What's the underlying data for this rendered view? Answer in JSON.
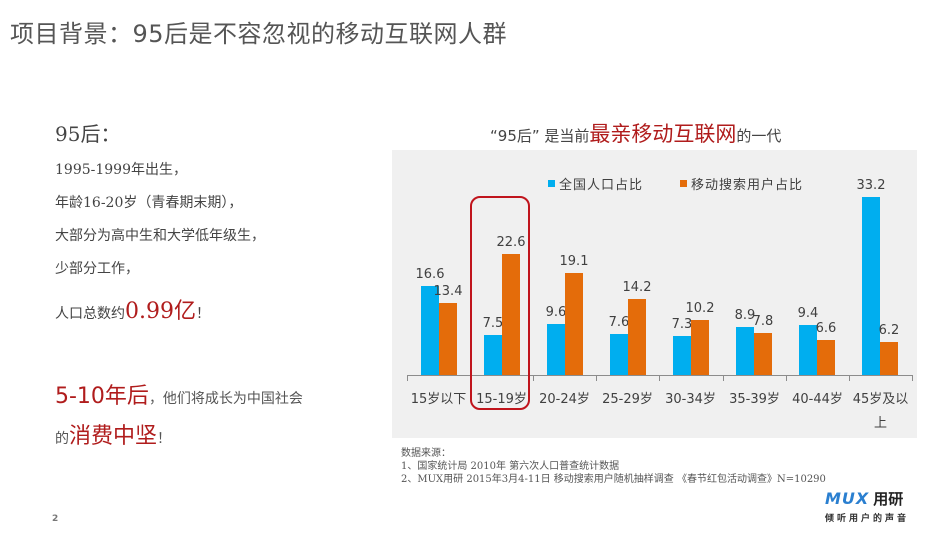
{
  "slide": {
    "title": "项目背景：95后是不容忽视的移动互联网人群",
    "page_number": "2"
  },
  "left_panel": {
    "heading": "95后：",
    "lines": [
      "1995-1999年出生，",
      "年龄16-20岁（青春期末期），",
      "大部分为高中生和大学低年级生，",
      "少部分工作，"
    ],
    "population_prefix": "人口总数约",
    "population_value": "0.99亿",
    "population_suffix": "！",
    "future_highlight": "5-10年后",
    "future_text": "，他们将成长为中国社会",
    "future_prefix2": "的",
    "future_highlight2": "消费中坚",
    "future_suffix2": "！"
  },
  "chart_header": {
    "prefix": "“95后” 是当前",
    "highlight": "最亲移动互联网",
    "suffix": "的一代"
  },
  "colors": {
    "population": "#00aeef",
    "mobile_search": "#e46c0a",
    "highlight_red": "#c0141c",
    "panel_bg": "#f0f0f0"
  },
  "chart_data": {
    "type": "bar",
    "title": "“95后” 是当前最亲移动互联网的一代",
    "xlabel": "",
    "ylabel": "",
    "categories": [
      "15岁以下",
      "15-19岁",
      "20-24岁",
      "25-29岁",
      "30-34岁",
      "35-39岁",
      "40-44岁",
      "45岁及以上"
    ],
    "series": [
      {
        "name": "全国人口占比",
        "color": "#00aeef",
        "values": [
          16.6,
          7.5,
          9.6,
          7.6,
          7.3,
          8.9,
          9.4,
          33.2
        ]
      },
      {
        "name": "移动搜索用户占比",
        "color": "#e46c0a",
        "values": [
          13.4,
          22.6,
          19.1,
          14.2,
          10.2,
          7.8,
          6.6,
          6.2
        ]
      }
    ],
    "legend_position": "top",
    "grid": false,
    "data_labels": true,
    "highlighted_category": "15-19岁",
    "ylim": [
      0,
      35
    ]
  },
  "legend": {
    "items": [
      {
        "label": "全国人口占比"
      },
      {
        "label": "移动搜索用户占比"
      }
    ]
  },
  "source": {
    "heading": "数据来源：",
    "items": [
      "1、国家统计局 2010年 第六次人口普查统计数据",
      "2、MUX用研 2015年3月4-11日 移动搜索用户随机抽样调查 《春节红包活动调查》N=10290"
    ]
  },
  "logo": {
    "brand": "MUX",
    "brand_cn": "用研",
    "slogan": "倾听用户的声音"
  }
}
